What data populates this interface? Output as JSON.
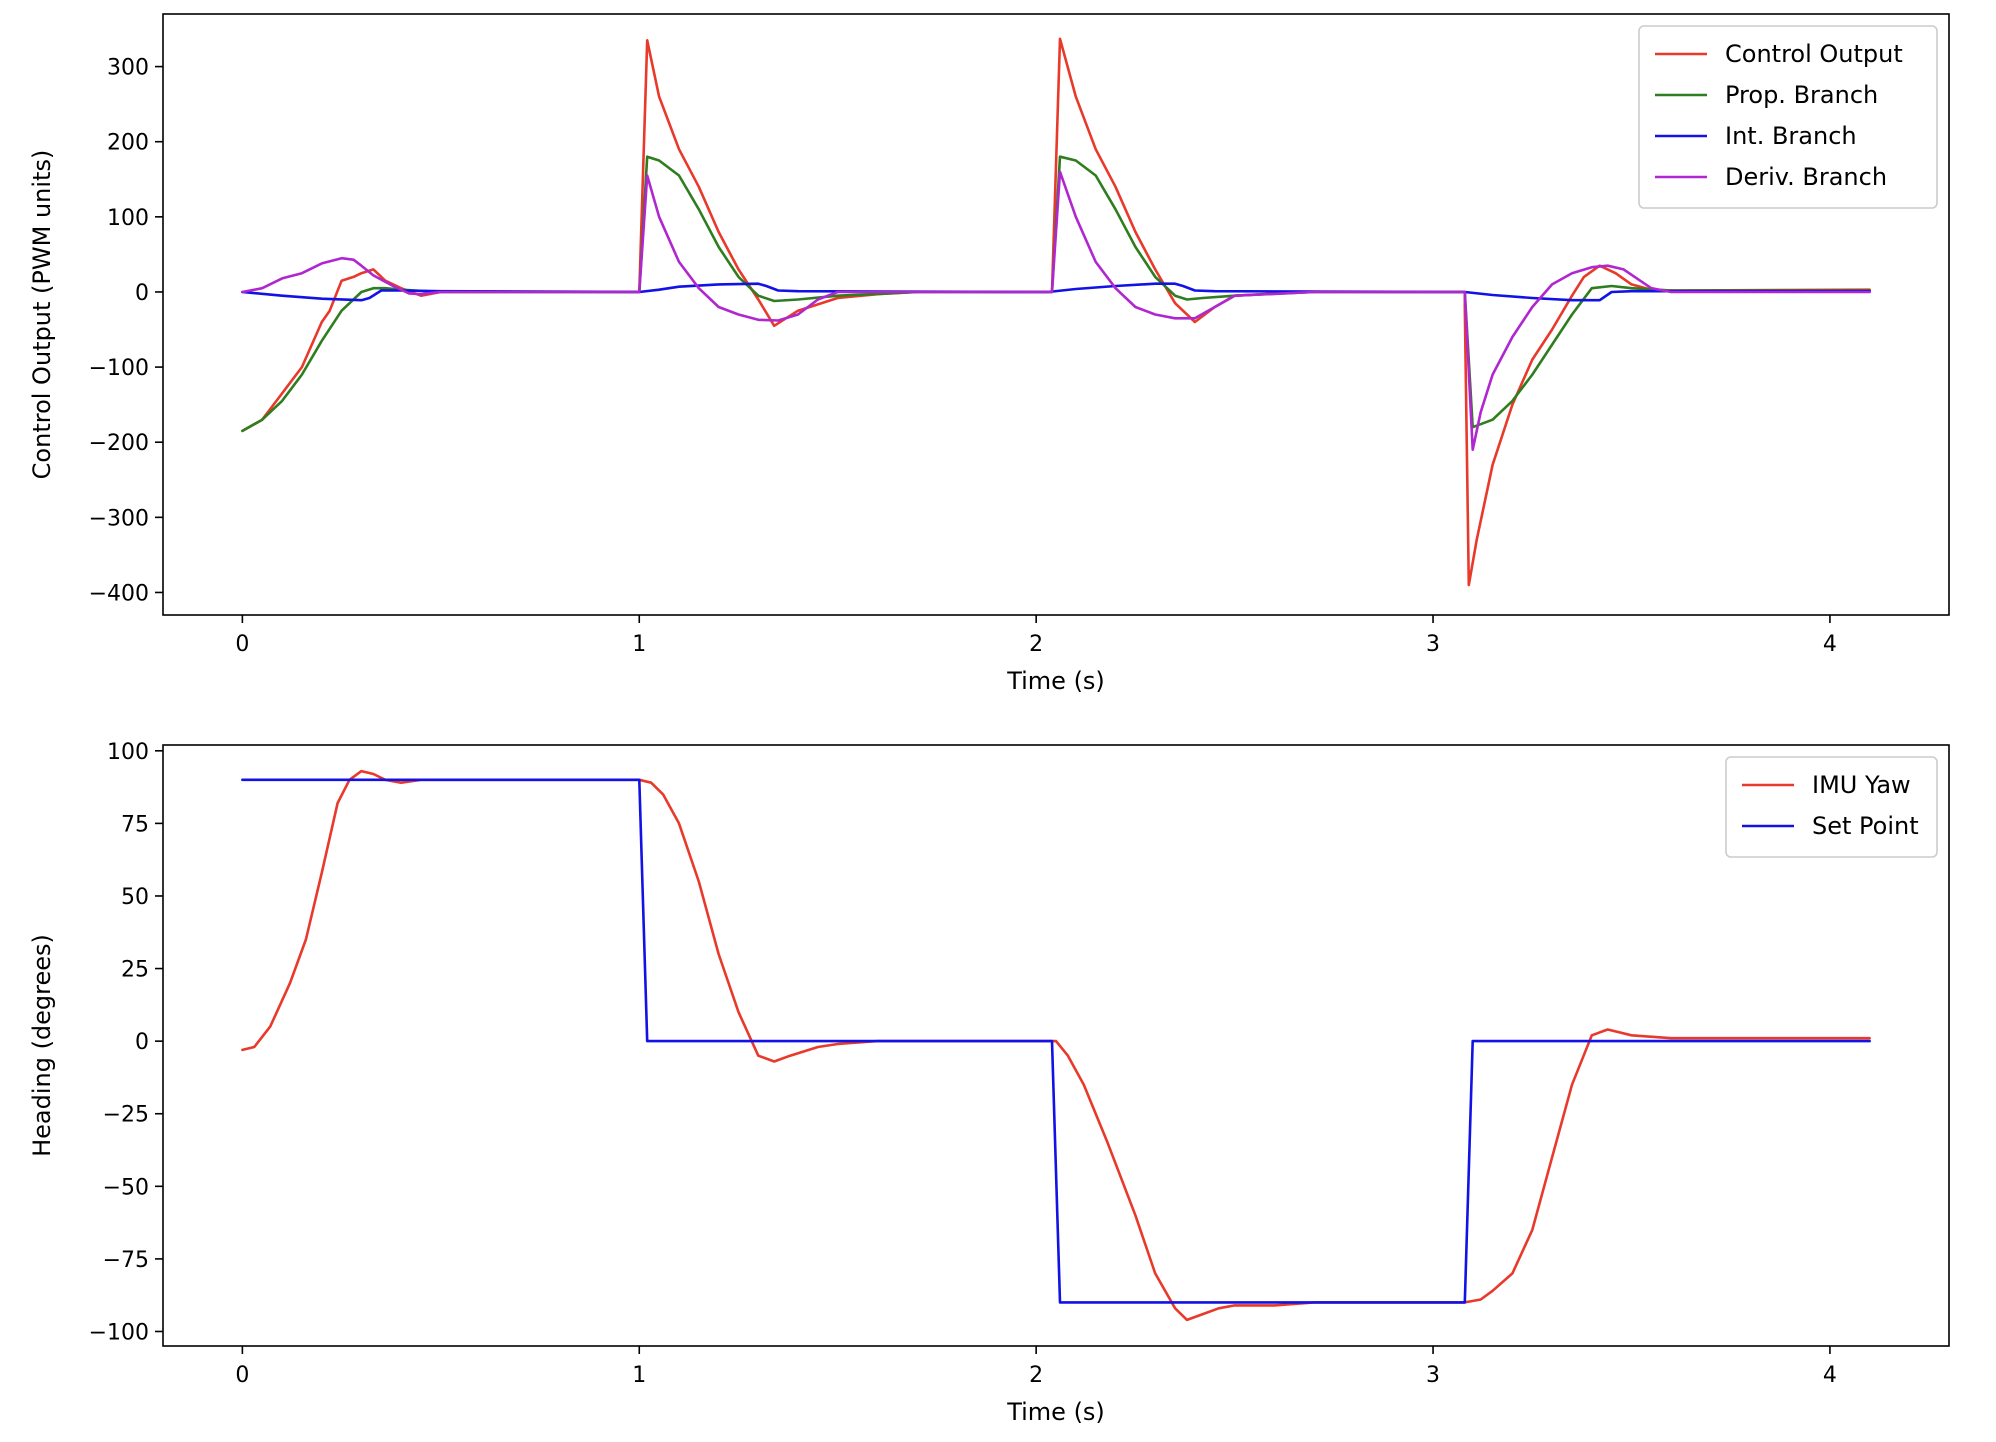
{
  "chart_data": [
    {
      "type": "line",
      "xlabel": "Time (s)",
      "ylabel": "Control Output (PWM units)",
      "xlim": [
        -0.2,
        4.3
      ],
      "ylim": [
        -430,
        370
      ],
      "xticks": [
        0,
        1,
        2,
        3,
        4
      ],
      "yticks": [
        -400,
        -300,
        -200,
        -100,
        0,
        100,
        200,
        300
      ],
      "xtick_labels": [
        "0",
        "1",
        "2",
        "3",
        "4"
      ],
      "ytick_labels": [
        "−400",
        "−300",
        "−200",
        "−100",
        "0",
        "100",
        "200",
        "300"
      ],
      "grid": false,
      "legend_position": "top-right",
      "series": [
        {
          "name": "Control Output",
          "color": "#e8392b",
          "x": [
            0,
            0.05,
            0.1,
            0.15,
            0.2,
            0.22,
            0.25,
            0.28,
            0.3,
            0.33,
            0.36,
            0.4,
            0.45,
            0.5,
            1.0,
            1.0,
            1.02,
            1.05,
            1.1,
            1.15,
            1.2,
            1.25,
            1.3,
            1.34,
            1.4,
            1.5,
            1.6,
            1.7,
            2.03,
            2.04,
            2.06,
            2.1,
            2.15,
            2.2,
            2.25,
            2.3,
            2.35,
            2.4,
            2.45,
            2.5,
            2.6,
            2.7,
            3.08,
            3.08,
            3.09,
            3.11,
            3.15,
            3.2,
            3.25,
            3.3,
            3.35,
            3.38,
            3.42,
            3.46,
            3.5,
            3.55,
            3.6,
            4.1
          ],
          "y": [
            -185,
            -170,
            -135,
            -100,
            -40,
            -25,
            15,
            20,
            25,
            30,
            15,
            5,
            -5,
            0,
            0,
            0,
            335,
            260,
            190,
            140,
            80,
            30,
            -10,
            -45,
            -25,
            -8,
            -3,
            0,
            0,
            0,
            337,
            260,
            190,
            140,
            80,
            30,
            -15,
            -40,
            -20,
            -5,
            -2,
            0,
            0,
            -20,
            -390,
            -330,
            -230,
            -150,
            -90,
            -50,
            -5,
            20,
            35,
            25,
            10,
            3,
            2,
            3
          ]
        },
        {
          "name": "Prop. Branch",
          "color": "#2e7d1e",
          "x": [
            0,
            0.05,
            0.1,
            0.15,
            0.2,
            0.25,
            0.3,
            0.33,
            0.36,
            0.4,
            0.5,
            1.0,
            1.0,
            1.02,
            1.05,
            1.1,
            1.15,
            1.2,
            1.25,
            1.3,
            1.34,
            1.4,
            1.5,
            1.7,
            2.03,
            2.04,
            2.06,
            2.1,
            2.15,
            2.2,
            2.25,
            2.3,
            2.35,
            2.38,
            2.42,
            2.5,
            2.7,
            3.08,
            3.08,
            3.1,
            3.15,
            3.2,
            3.25,
            3.3,
            3.35,
            3.4,
            3.45,
            3.5,
            3.6,
            4.1
          ],
          "y": [
            -185,
            -170,
            -145,
            -110,
            -65,
            -25,
            0,
            5,
            5,
            3,
            0,
            0,
            0,
            180,
            175,
            155,
            110,
            60,
            20,
            -5,
            -12,
            -10,
            -5,
            0,
            0,
            0,
            180,
            175,
            155,
            110,
            60,
            20,
            -5,
            -10,
            -8,
            -5,
            0,
            0,
            0,
            -180,
            -170,
            -145,
            -110,
            -70,
            -30,
            5,
            8,
            5,
            2,
            2
          ]
        },
        {
          "name": "Int. Branch",
          "color": "#1212e6",
          "x": [
            0,
            0.1,
            0.2,
            0.3,
            0.32,
            0.35,
            0.4,
            0.5,
            1.0,
            1.05,
            1.1,
            1.2,
            1.3,
            1.32,
            1.35,
            1.4,
            2.03,
            2.1,
            2.2,
            2.3,
            2.35,
            2.37,
            2.4,
            2.45,
            3.08,
            3.15,
            3.25,
            3.35,
            3.42,
            3.45,
            3.5,
            4.1
          ],
          "y": [
            0,
            -5,
            -9,
            -11,
            -8,
            2,
            2,
            1,
            0,
            3,
            7,
            10,
            11,
            8,
            2,
            1,
            0,
            4,
            8,
            11,
            11,
            8,
            2,
            1,
            0,
            -4,
            -8,
            -11,
            -11,
            0,
            1,
            1
          ]
        },
        {
          "name": "Deriv. Branch",
          "color": "#b027d0",
          "x": [
            0,
            0.05,
            0.1,
            0.15,
            0.2,
            0.25,
            0.28,
            0.3,
            0.33,
            0.38,
            0.42,
            0.45,
            0.5,
            1.0,
            1.0,
            1.02,
            1.05,
            1.1,
            1.15,
            1.2,
            1.25,
            1.3,
            1.35,
            1.4,
            1.45,
            1.5,
            1.7,
            2.03,
            2.04,
            2.06,
            2.1,
            2.15,
            2.2,
            2.25,
            2.3,
            2.35,
            2.4,
            2.45,
            2.5,
            2.7,
            3.08,
            3.08,
            3.1,
            3.12,
            3.15,
            3.2,
            3.25,
            3.3,
            3.35,
            3.4,
            3.44,
            3.48,
            3.55,
            3.6,
            4.1
          ],
          "y": [
            0,
            5,
            18,
            25,
            38,
            45,
            43,
            35,
            22,
            8,
            -2,
            -3,
            0,
            0,
            0,
            155,
            100,
            40,
            5,
            -20,
            -30,
            -37,
            -38,
            -30,
            -10,
            0,
            0,
            0,
            0,
            160,
            100,
            40,
            5,
            -20,
            -30,
            -35,
            -35,
            -20,
            -5,
            0,
            0,
            0,
            -210,
            -160,
            -110,
            -60,
            -20,
            10,
            25,
            33,
            35,
            30,
            5,
            0,
            0
          ]
        }
      ]
    },
    {
      "type": "line",
      "xlabel": "Time (s)",
      "ylabel": "Heading (degrees)",
      "xlim": [
        -0.2,
        4.3
      ],
      "ylim": [
        -105,
        102
      ],
      "xticks": [
        0,
        1,
        2,
        3,
        4
      ],
      "yticks": [
        -100,
        -75,
        -50,
        -25,
        0,
        25,
        50,
        75,
        100
      ],
      "xtick_labels": [
        "0",
        "1",
        "2",
        "3",
        "4"
      ],
      "ytick_labels": [
        "−100",
        "−75",
        "−50",
        "−25",
        "0",
        "25",
        "50",
        "75",
        "100"
      ],
      "grid": false,
      "legend_position": "top-right",
      "series": [
        {
          "name": "IMU Yaw",
          "color": "#e8392b",
          "x": [
            0,
            0.03,
            0.07,
            0.12,
            0.16,
            0.2,
            0.24,
            0.27,
            0.3,
            0.33,
            0.36,
            0.4,
            0.45,
            0.5,
            1.0,
            1.03,
            1.06,
            1.1,
            1.15,
            1.2,
            1.25,
            1.3,
            1.34,
            1.38,
            1.45,
            1.5,
            1.6,
            1.7,
            2.05,
            2.08,
            2.12,
            2.18,
            2.25,
            2.3,
            2.35,
            2.38,
            2.42,
            2.46,
            2.5,
            2.6,
            2.7,
            3.08,
            3.12,
            3.15,
            3.2,
            3.25,
            3.3,
            3.35,
            3.4,
            3.44,
            3.47,
            3.5,
            3.6,
            4.1
          ],
          "y": [
            -3,
            -2,
            5,
            20,
            35,
            58,
            82,
            90,
            93,
            92,
            90,
            89,
            90,
            90,
            90,
            89,
            85,
            75,
            55,
            30,
            10,
            -5,
            -7,
            -5,
            -2,
            -1,
            0,
            0,
            0,
            -5,
            -15,
            -35,
            -60,
            -80,
            -92,
            -96,
            -94,
            -92,
            -91,
            -91,
            -90,
            -90,
            -89,
            -86,
            -80,
            -65,
            -40,
            -15,
            2,
            4,
            3,
            2,
            1,
            1
          ]
        },
        {
          "name": "Set Point",
          "color": "#1212e6",
          "x": [
            0,
            1.0,
            1.02,
            2.04,
            2.06,
            3.08,
            3.1,
            4.1
          ],
          "y": [
            90,
            90,
            0,
            0,
            -90,
            -90,
            0,
            0
          ]
        }
      ]
    }
  ]
}
